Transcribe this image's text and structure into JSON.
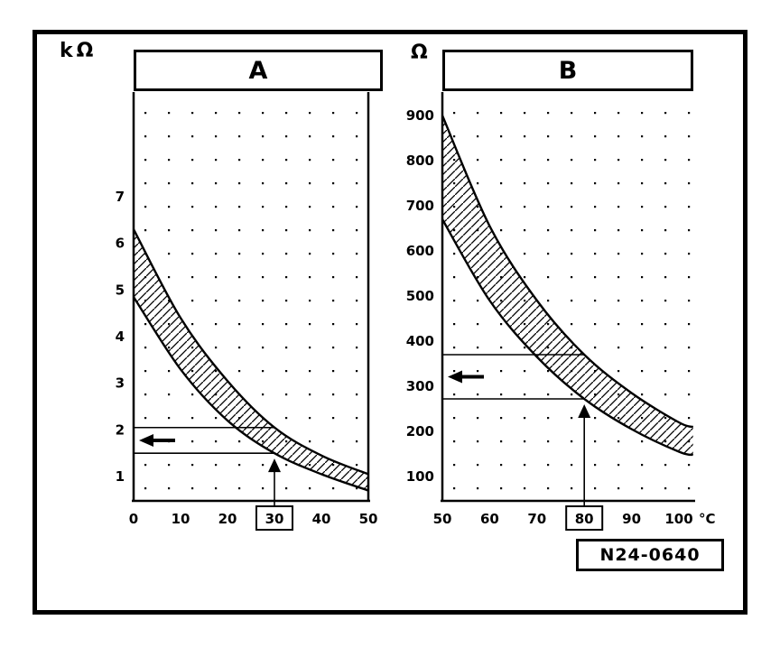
{
  "reference_label": "N24-0640",
  "chart_data": [
    {
      "id": "A",
      "type": "line",
      "title": "A",
      "y_axis_unit": "kΩ",
      "x_axis_suffix": "",
      "grid": "dotted",
      "x_range": [
        0,
        50
      ],
      "y_range": [
        0.5,
        9
      ],
      "x_ticks": [
        0,
        10,
        20,
        30,
        40,
        50
      ],
      "y_ticks": [
        1,
        2,
        3,
        4,
        5,
        6,
        7
      ],
      "series": [
        {
          "name": "resistance-upper-limit",
          "x": [
            0,
            10,
            20,
            30,
            40,
            50
          ],
          "y": [
            6.3,
            4.4,
            3.05,
            2.05,
            1.45,
            1.05
          ]
        },
        {
          "name": "resistance-lower-limit",
          "x": [
            0,
            10,
            20,
            30,
            40,
            50
          ],
          "y": [
            4.85,
            3.3,
            2.2,
            1.5,
            1.05,
            0.7
          ]
        }
      ],
      "reading": {
        "x": 30,
        "upper": 2.05,
        "lower": 1.5
      },
      "legend": "none"
    },
    {
      "id": "B",
      "type": "line",
      "title": "B",
      "y_axis_unit": "Ω",
      "x_axis_suffix": "°C",
      "grid": "dotted",
      "x_range": [
        50,
        100
      ],
      "y_range": [
        50,
        940
      ],
      "x_ticks": [
        50,
        60,
        70,
        80,
        90,
        100
      ],
      "y_ticks": [
        100,
        200,
        300,
        400,
        500,
        600,
        700,
        800,
        900
      ],
      "series": [
        {
          "name": "resistance-upper-limit",
          "x": [
            50,
            60,
            70,
            80,
            90,
            100,
            103
          ],
          "y": [
            900,
            655,
            490,
            370,
            285,
            220,
            210
          ]
        },
        {
          "name": "resistance-lower-limit",
          "x": [
            50,
            60,
            70,
            80,
            90,
            100,
            103
          ],
          "y": [
            670,
            490,
            365,
            272,
            205,
            155,
            148
          ]
        }
      ],
      "reading": {
        "x": 80,
        "upper": 370,
        "lower": 272
      },
      "legend": "none"
    }
  ]
}
